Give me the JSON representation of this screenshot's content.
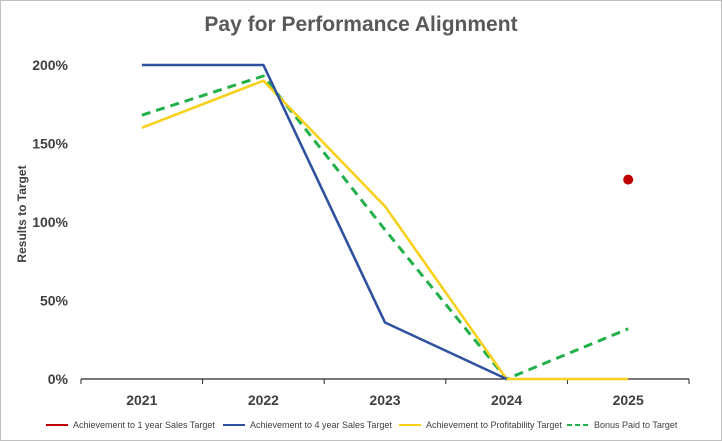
{
  "chart_data": {
    "type": "line",
    "title": "Pay for Performance Alignment",
    "xlabel": "",
    "ylabel": "Results to Target",
    "categories": [
      "2021",
      "2022",
      "2023",
      "2024",
      "2025"
    ],
    "ylim": [
      0,
      2
    ],
    "yticks": [
      0,
      0.5,
      1,
      1.5,
      2
    ],
    "ytick_labels": [
      "0%",
      "50%",
      "100%",
      "150%",
      "200%"
    ],
    "grid": false,
    "legend_position": "bottom",
    "series": [
      {
        "name": "Achievement to 1 year Sales Target",
        "color": "#c00000",
        "style": "marker",
        "values": [
          null,
          null,
          null,
          null,
          1.27
        ]
      },
      {
        "name": "Achievement to 4 year Sales Target",
        "color": "#2f52a0",
        "style": "solid",
        "values": [
          2.0,
          2.0,
          0.36,
          0.0,
          null
        ]
      },
      {
        "name": "Achievement to Profitability Target",
        "color": "#f7d11e",
        "style": "solid",
        "values": [
          1.6,
          1.9,
          1.1,
          0.0,
          0.0
        ]
      },
      {
        "name": "Bonus Paid to Target",
        "color": "#22b04b",
        "style": "dashed",
        "values": [
          1.68,
          1.93,
          0.95,
          0.0,
          0.32
        ]
      }
    ]
  }
}
